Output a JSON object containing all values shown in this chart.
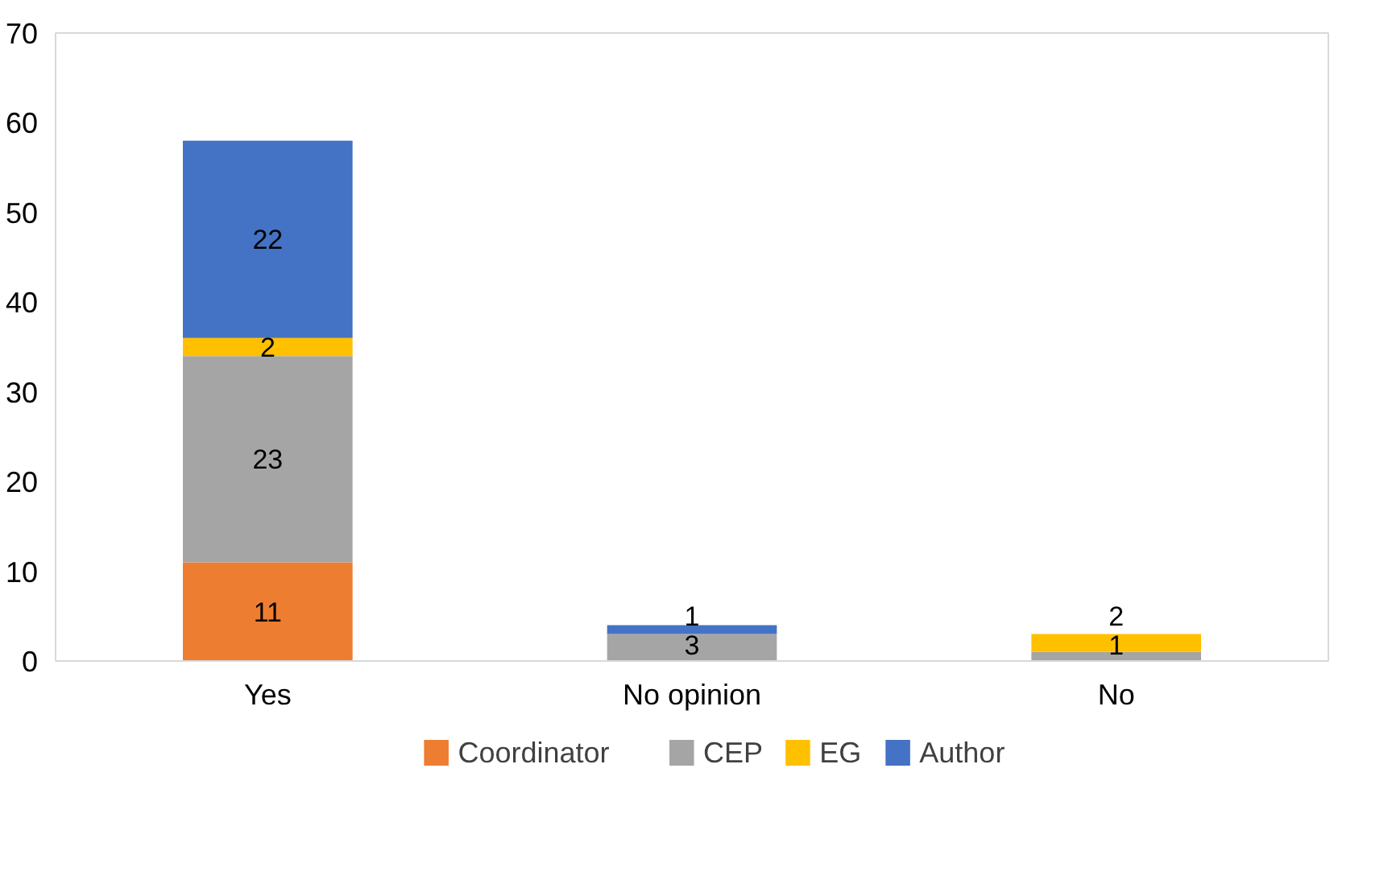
{
  "chart_data": {
    "type": "bar",
    "stacked": true,
    "categories": [
      "Yes",
      "No opinion",
      "No"
    ],
    "series": [
      {
        "name": "Coordinator",
        "color": "#ed7d31",
        "values": [
          11,
          0,
          0
        ],
        "value_labels": [
          "11",
          null,
          null
        ]
      },
      {
        "name": "CEP",
        "color": "#a5a5a5",
        "values": [
          23,
          3,
          1
        ],
        "value_labels": [
          "23",
          "3",
          "1"
        ]
      },
      {
        "name": "EG",
        "color": "#ffc000",
        "values": [
          2,
          0,
          2
        ],
        "value_labels": [
          "2",
          null,
          "2"
        ]
      },
      {
        "name": "Author",
        "color": "#4472c4",
        "values": [
          22,
          1,
          0
        ],
        "value_labels": [
          "22",
          "1",
          null
        ]
      }
    ],
    "ylim": [
      0,
      70
    ],
    "yticks": [
      0,
      10,
      20,
      30,
      40,
      50,
      60,
      70
    ],
    "grid": false,
    "legend": "bottom"
  }
}
